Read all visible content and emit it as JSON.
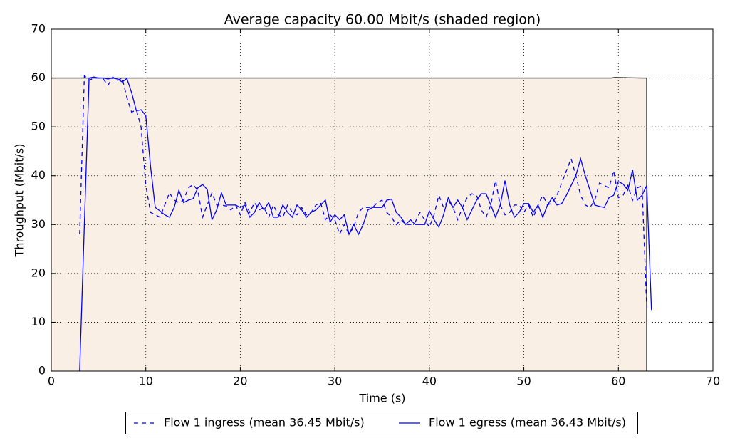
{
  "chart_data": {
    "type": "line",
    "title": "Average capacity 60.00 Mbit/s (shaded region)",
    "x_label": "Time (s)",
    "y_label": "Throughput (Mbit/s)",
    "xlim": [
      0,
      70
    ],
    "ylim": [
      0,
      70
    ],
    "xticks": [
      0,
      10,
      20,
      30,
      40,
      50,
      60,
      70
    ],
    "yticks": [
      0,
      10,
      20,
      30,
      40,
      50,
      60,
      70
    ],
    "grid": true,
    "legend_position": "below",
    "capacity": {
      "color": "#faefe4",
      "edge_color": "#000000",
      "x": [
        0,
        59.3,
        59.6,
        62.5,
        63.0,
        63.0
      ],
      "values": [
        60,
        60,
        60.1,
        60,
        60,
        0
      ]
    },
    "series": [
      {
        "name": "Flow 1 ingress (mean 36.45 Mbit/s)",
        "color": "#0000ff",
        "style": "dashed",
        "x": [
          3,
          3.5,
          4,
          4.5,
          5,
          5.5,
          6,
          6.5,
          7,
          7.5,
          8,
          8.5,
          9,
          9.5,
          10,
          10.5,
          11,
          11.5,
          12,
          12.5,
          13,
          13.5,
          14,
          14.5,
          15,
          15.5,
          16,
          16.5,
          17,
          17.5,
          18,
          18.5,
          19,
          19.5,
          20,
          20.5,
          21,
          21.5,
          22,
          22.5,
          23,
          23.5,
          24,
          24.5,
          25,
          25.5,
          26,
          26.5,
          27,
          27.5,
          28,
          28.5,
          29,
          29.5,
          30,
          30.5,
          31,
          31.5,
          32,
          32.5,
          33,
          33.5,
          34,
          34.5,
          35,
          35.5,
          36,
          36.5,
          37,
          37.5,
          38,
          38.5,
          39,
          39.5,
          40,
          40.5,
          41,
          41.5,
          42,
          42.5,
          43,
          43.5,
          44,
          44.5,
          45,
          45.5,
          46,
          46.5,
          47,
          47.5,
          48,
          48.5,
          49,
          49.5,
          50,
          50.5,
          51,
          51.5,
          52,
          52.5,
          53,
          53.5,
          54,
          54.5,
          55,
          55.5,
          56,
          56.5,
          57,
          57.5,
          58,
          58.5,
          59,
          59.5,
          60,
          60.5,
          61,
          61.5,
          62,
          62.5,
          63
        ],
        "values": [
          28,
          60.5,
          59.5,
          60,
          60,
          59.8,
          58.5,
          60.2,
          59.5,
          60,
          56,
          53,
          53.5,
          50,
          38,
          32.5,
          32,
          31.5,
          34,
          36.5,
          35,
          34.5,
          35,
          37.5,
          38.2,
          37,
          31.5,
          34,
          36.5,
          34,
          34,
          33.8,
          33,
          34,
          32,
          34.5,
          32.5,
          34.5,
          33,
          33.5,
          31.5,
          34,
          32,
          31.5,
          34,
          32.5,
          32,
          33.5,
          32,
          32.5,
          34,
          34.5,
          31,
          32,
          31,
          28,
          30,
          28,
          29.5,
          32.5,
          33.5,
          33.5,
          33.5,
          34.5,
          35,
          32.5,
          31.5,
          30,
          31,
          30,
          30,
          30.5,
          32.5,
          31,
          29.5,
          32,
          36,
          33.5,
          35,
          33.5,
          31,
          33.5,
          35.5,
          36.3,
          36,
          33,
          31.5,
          34,
          39,
          34,
          32,
          32.5,
          34,
          34,
          32.5,
          34,
          31.5,
          34,
          36,
          34,
          34.5,
          36,
          38.5,
          41,
          43.5,
          40,
          36,
          34,
          33.5,
          35,
          38.5,
          38,
          37.5,
          41,
          35.5,
          36,
          38,
          35,
          37.5,
          38,
          13
        ]
      },
      {
        "name": "Flow 1 egress (mean 36.43 Mbit/s)",
        "color": "#0000ff",
        "style": "solid",
        "x": [
          3,
          3.5,
          4,
          4.5,
          5,
          5.5,
          6,
          6.5,
          7,
          7.5,
          8,
          8.5,
          9,
          9.5,
          10,
          10.5,
          11,
          11.5,
          12,
          12.5,
          13,
          13.5,
          14,
          14.5,
          15,
          15.5,
          16,
          16.5,
          17,
          17.5,
          18,
          18.5,
          19,
          19.5,
          20,
          20.5,
          21,
          21.5,
          22,
          22.5,
          23,
          23.5,
          24,
          24.5,
          25,
          25.5,
          26,
          26.5,
          27,
          27.5,
          28,
          28.5,
          29,
          29.5,
          30,
          30.5,
          31,
          31.5,
          32,
          32.5,
          33,
          33.5,
          34,
          34.5,
          35,
          35.5,
          36,
          36.5,
          37,
          37.5,
          38,
          38.5,
          39,
          39.5,
          40,
          40.5,
          41,
          41.5,
          42,
          42.5,
          43,
          43.5,
          44,
          44.5,
          45,
          45.5,
          46,
          46.5,
          47,
          47.5,
          48,
          48.5,
          49,
          49.5,
          50,
          50.5,
          51,
          51.5,
          52,
          52.5,
          53,
          53.5,
          54,
          54.5,
          55,
          55.5,
          56,
          56.5,
          57,
          57.5,
          58,
          58.5,
          59,
          59.5,
          60,
          60.5,
          61,
          61.5,
          62,
          62.5,
          63,
          63.5
        ],
        "values": [
          0,
          30,
          60,
          60.2,
          60,
          60,
          59.8,
          60,
          59.8,
          59.2,
          59.9,
          57,
          53.3,
          53.5,
          52.3,
          42,
          33.5,
          32.8,
          32,
          31.5,
          33.5,
          37,
          34.5,
          35,
          35.3,
          37.5,
          38.2,
          37.2,
          31,
          33,
          36.5,
          34,
          34,
          34,
          33.5,
          34,
          31.5,
          32.5,
          34.5,
          33,
          34.5,
          31.5,
          31.5,
          34,
          32.5,
          31.5,
          34,
          33,
          31.5,
          32.5,
          33,
          34,
          35,
          30.5,
          32,
          31,
          32,
          28,
          30,
          28,
          30,
          33,
          33.5,
          33.5,
          33.5,
          35,
          35.2,
          32.5,
          31.5,
          30,
          31,
          30,
          30,
          30,
          32.8,
          31,
          29.5,
          32,
          35.5,
          33.5,
          35,
          33.5,
          31,
          33,
          35,
          36.3,
          36.3,
          34,
          31.5,
          34,
          39,
          34,
          31.5,
          32.5,
          34.3,
          34.3,
          32.5,
          34,
          31.5,
          34,
          35.5,
          34,
          34.3,
          36,
          38,
          40,
          43.5,
          40,
          37,
          34,
          33.7,
          33.5,
          35.5,
          36,
          38.8,
          38.3,
          37,
          41.2,
          35,
          36,
          38,
          12.5
        ]
      }
    ]
  }
}
